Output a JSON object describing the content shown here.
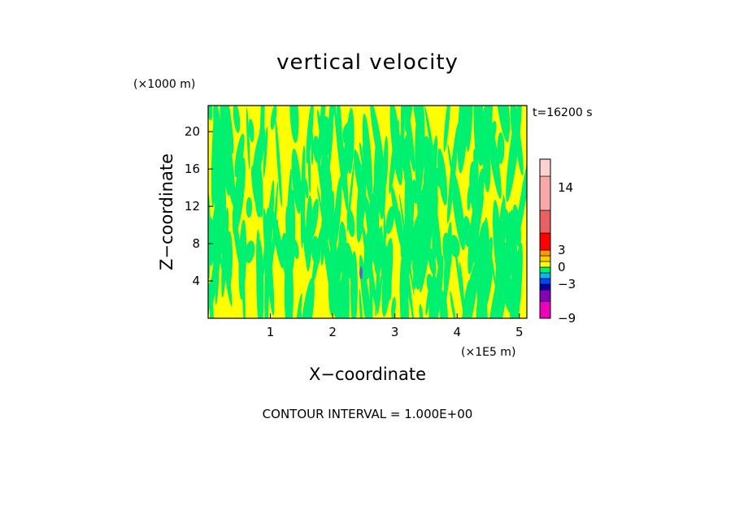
{
  "chart_data": {
    "type": "heatmap",
    "title": "vertical velocity",
    "xlabel": "X−coordinate",
    "ylabel": "Z−coordinate",
    "x_unit": "(×1E5 m)",
    "y_unit": "(×1000 m)",
    "time_label": "t=16200 s",
    "xlim": [
      0,
      5.12
    ],
    "ylim": [
      0,
      22.8
    ],
    "x_ticks": [
      "1",
      "2",
      "3",
      "4",
      "5"
    ],
    "y_ticks": [
      "4",
      "8",
      "12",
      "16",
      "20"
    ],
    "x_tick_values": [
      1,
      2,
      3,
      4,
      5
    ],
    "y_tick_values": [
      4,
      8,
      12,
      16,
      20
    ],
    "colorbar": {
      "tick_labels": [
        "14",
        "3",
        "0",
        "−3",
        "−9"
      ],
      "tick_values": [
        14,
        3,
        0,
        -3,
        -9
      ],
      "levels": [
        {
          "from": -9,
          "to": -6,
          "color": "#ee00bb"
        },
        {
          "from": -6,
          "to": -4,
          "color": "#8800bb"
        },
        {
          "from": -4,
          "to": -3,
          "color": "#0000aa"
        },
        {
          "from": -3,
          "to": -2,
          "color": "#0044ff"
        },
        {
          "from": -2,
          "to": -1,
          "color": "#00bbee"
        },
        {
          "from": -1,
          "to": 0,
          "color": "#00f070"
        },
        {
          "from": 0,
          "to": 1,
          "color": "#ffff00"
        },
        {
          "from": 1,
          "to": 2,
          "color": "#ffcc00"
        },
        {
          "from": 2,
          "to": 3,
          "color": "#ff9900"
        },
        {
          "from": 3,
          "to": 6,
          "color": "#ff0000"
        },
        {
          "from": 6,
          "to": 10,
          "color": "#e86060"
        },
        {
          "from": 10,
          "to": 16,
          "color": "#f8a8a8"
        },
        {
          "from": 16,
          "to": 19,
          "color": "#ffd0d0"
        }
      ]
    },
    "field_colors": {
      "positive": "#ffff00",
      "negative": "#00f070",
      "min_spot": "#5566cc"
    },
    "grid": false,
    "legend": "right"
  },
  "footer": {
    "contour_interval": "CONTOUR INTERVAL = 1.000E+00"
  }
}
